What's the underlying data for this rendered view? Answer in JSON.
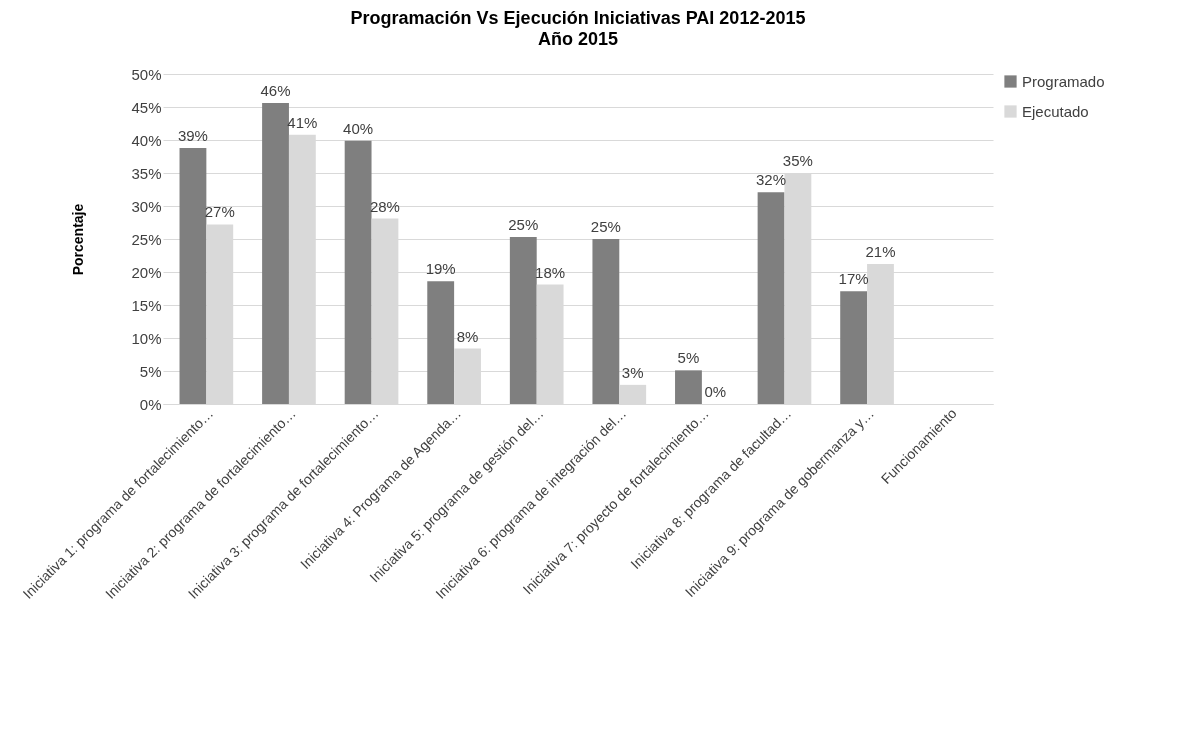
{
  "chart_data": {
    "type": "bar",
    "title": "Programación Vs Ejecución Iniciativas PAI 2012-2015",
    "subtitle": "Año 2015",
    "ylabel": "Porcentaje",
    "categories": [
      "Iniciativa 1: programa de fortalecimiento…",
      "Iniciativa 2: programa de fortalecimiento…",
      "Iniciativa 3: programa de fortalecimiento…",
      "Iniciativa 4: Programa de Agenda…",
      "Iniciativa 5: programa de gestión del…",
      "Iniciativa 6: programa de integración del…",
      "Iniciativa 7: proyecto de fortalecimiento…",
      "Iniciativa 8: programa de facultad…",
      "Iniciativa 9: programa de gobermanza y…",
      "Funcionamiento"
    ],
    "series": [
      {
        "name": "Programado",
        "color": "#7f7f7f",
        "values": [
          38.8,
          45.6,
          39.9,
          18.6,
          25.3,
          25.0,
          5.1,
          32.1,
          17.1,
          null
        ],
        "value_labels": [
          "39%",
          "46%",
          "40%",
          "19%",
          "25%",
          "25%",
          "5%",
          "32%",
          "17%",
          null
        ]
      },
      {
        "name": "Ejecutado",
        "color": "#d9d9d9",
        "values": [
          27.2,
          40.8,
          28.1,
          8.4,
          18.1,
          2.9,
          0,
          35.0,
          21.2,
          null
        ],
        "value_labels": [
          "27%",
          "41%",
          "28%",
          "8%",
          "18%",
          "3%",
          "0%",
          "35%",
          "21%",
          null
        ]
      }
    ],
    "ylim": [
      0,
      50
    ],
    "yticks": [
      {
        "value": 0,
        "label": "0%"
      },
      {
        "value": 5,
        "label": "5%"
      },
      {
        "value": 10,
        "label": "10%"
      },
      {
        "value": 15,
        "label": "15%"
      },
      {
        "value": 20,
        "label": "20%"
      },
      {
        "value": 25,
        "label": "25%"
      },
      {
        "value": 30,
        "label": "30%"
      },
      {
        "value": 35,
        "label": "35%"
      },
      {
        "value": 40,
        "label": "40%"
      },
      {
        "value": 45,
        "label": "45%"
      },
      {
        "value": 50,
        "label": "50%"
      }
    ],
    "grid": "y",
    "legend": "right"
  }
}
